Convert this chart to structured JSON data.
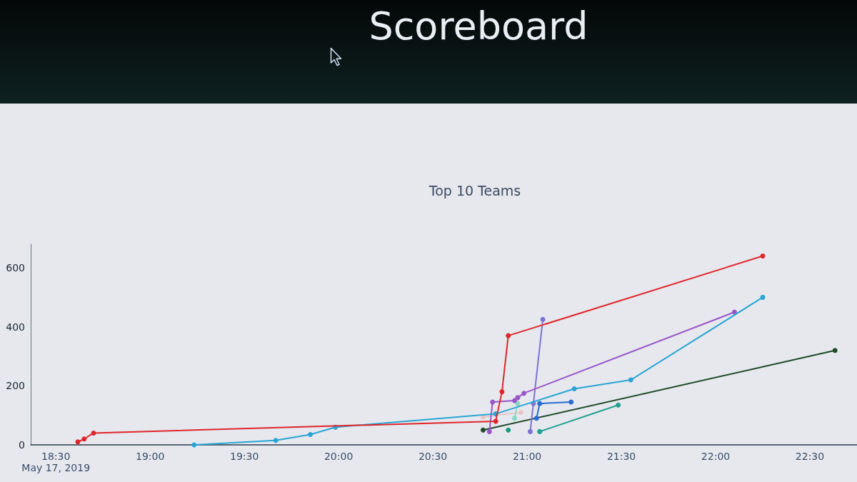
{
  "chart_data": {
    "type": "line",
    "title": "Scoreboard",
    "subtitle": "Top 10 Teams",
    "marker": "circle",
    "line_style": "solid",
    "grid": false,
    "xlim": [
      "2019-05-17T18:22",
      "2019-05-17T22:45"
    ],
    "xticks": [
      {
        "value": "2019-05-17T18:30",
        "label": "18:30\nMay 17, 2019"
      },
      {
        "value": "2019-05-17T19:00",
        "label": "19:00"
      },
      {
        "value": "2019-05-17T19:30",
        "label": "19:30"
      },
      {
        "value": "2019-05-17T20:00",
        "label": "20:00"
      },
      {
        "value": "2019-05-17T20:30",
        "label": "20:30"
      },
      {
        "value": "2019-05-17T21:00",
        "label": "21:00"
      },
      {
        "value": "2019-05-17T21:30",
        "label": "21:30"
      },
      {
        "value": "2019-05-17T22:00",
        "label": "22:00"
      },
      {
        "value": "2019-05-17T22:30",
        "label": "22:30"
      }
    ],
    "ylim": [
      0,
      680
    ],
    "yticks": [
      0,
      200,
      400,
      600
    ],
    "series": [
      {
        "color": "#e8c6c6",
        "x": [
          "2019-05-17T20:46",
          "2019-05-17T20:58"
        ],
        "values": [
          95,
          110
        ]
      },
      {
        "color": "#86dac4",
        "x": [
          "2019-05-17T20:56",
          "2019-05-17T20:57"
        ],
        "values": [
          90,
          140
        ]
      },
      {
        "color": "#1c9c78",
        "x": [
          "2019-05-17T20:54"
        ],
        "values": [
          50
        ]
      },
      {
        "color": "#21a08e",
        "x": [
          "2019-05-17T21:04",
          "2019-05-17T21:29"
        ],
        "values": [
          45,
          135
        ]
      },
      {
        "color": "#204a28",
        "x": [
          "2019-05-17T20:46",
          "2019-05-17T22:38"
        ],
        "values": [
          50,
          320
        ]
      },
      {
        "color": "#2a6cd2",
        "x": [
          "2019-05-17T21:03",
          "2019-05-17T21:04",
          "2019-05-17T21:14"
        ],
        "values": [
          90,
          140,
          145
        ]
      },
      {
        "color": "#7d74d4",
        "x": [
          "2019-05-17T21:01",
          "2019-05-17T21:02",
          "2019-05-17T21:05"
        ],
        "values": [
          45,
          140,
          425
        ]
      },
      {
        "color": "#9a55c9",
        "x": [
          "2019-05-17T20:48",
          "2019-05-17T20:49",
          "2019-05-17T20:56",
          "2019-05-17T20:57",
          "2019-05-17T20:59",
          "2019-05-17T22:06"
        ],
        "values": [
          45,
          145,
          150,
          160,
          175,
          450
        ]
      },
      {
        "color": "#2aa5d4",
        "x": [
          "2019-05-17T19:14",
          "2019-05-17T19:40",
          "2019-05-17T19:51",
          "2019-05-17T19:59",
          "2019-05-17T20:50",
          "2019-05-17T21:15",
          "2019-05-17T21:33",
          "2019-05-17T22:15"
        ],
        "values": [
          0,
          15,
          35,
          60,
          105,
          190,
          220,
          500
        ]
      },
      {
        "color": "#e0262a",
        "x": [
          "2019-05-17T18:37",
          "2019-05-17T18:39",
          "2019-05-17T18:42",
          "2019-05-17T20:50",
          "2019-05-17T20:52",
          "2019-05-17T20:54",
          "2019-05-17T22:15"
        ],
        "values": [
          10,
          20,
          40,
          80,
          180,
          370,
          640
        ]
      }
    ]
  }
}
